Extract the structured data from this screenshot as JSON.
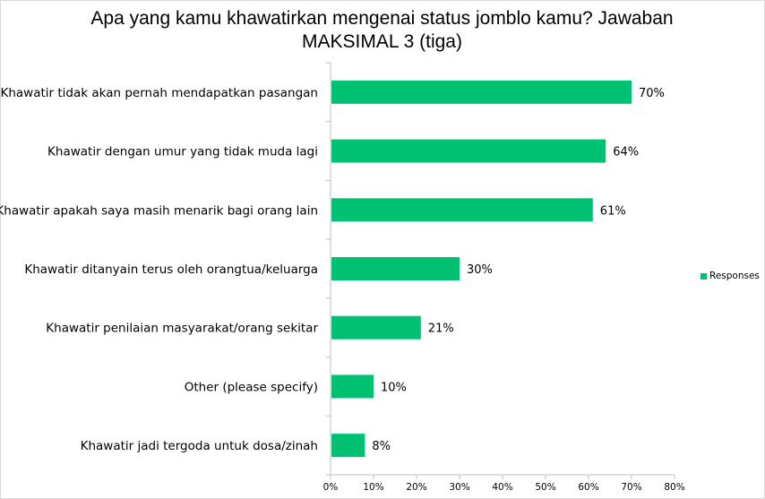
{
  "chart_data": {
    "type": "bar",
    "orientation": "horizontal",
    "title": "Apa yang kamu khawatirkan mengenai status jomblo kamu? Jawaban MAKSIMAL 3 (tiga)",
    "categories": [
      "Khawatir tidak akan pernah mendapatkan pasangan",
      "Khawatir dengan umur yang tidak muda lagi",
      "Khawatir apakah saya masih menarik bagi orang lain",
      "Khawatir ditanyain terus oleh orangtua/keluarga",
      "Khawatir penilaian masyarakat/orang sekitar",
      "Other (please specify)",
      "Khawatir jadi tergoda untuk dosa/zinah"
    ],
    "series": [
      {
        "name": "Responses",
        "values": [
          70,
          64,
          61,
          30,
          21,
          10,
          8
        ],
        "labels": [
          "70%",
          "64%",
          "61%",
          "30%",
          "21%",
          "10%",
          "8%"
        ]
      }
    ],
    "xlim": [
      0,
      80
    ],
    "xticks": [
      "0%",
      "10%",
      "20%",
      "30%",
      "40%",
      "50%",
      "60%",
      "70%",
      "80%"
    ],
    "grid": false,
    "legend": "right",
    "colors": {
      "bar": "#00c071",
      "axis": "#bfbfbf"
    }
  }
}
